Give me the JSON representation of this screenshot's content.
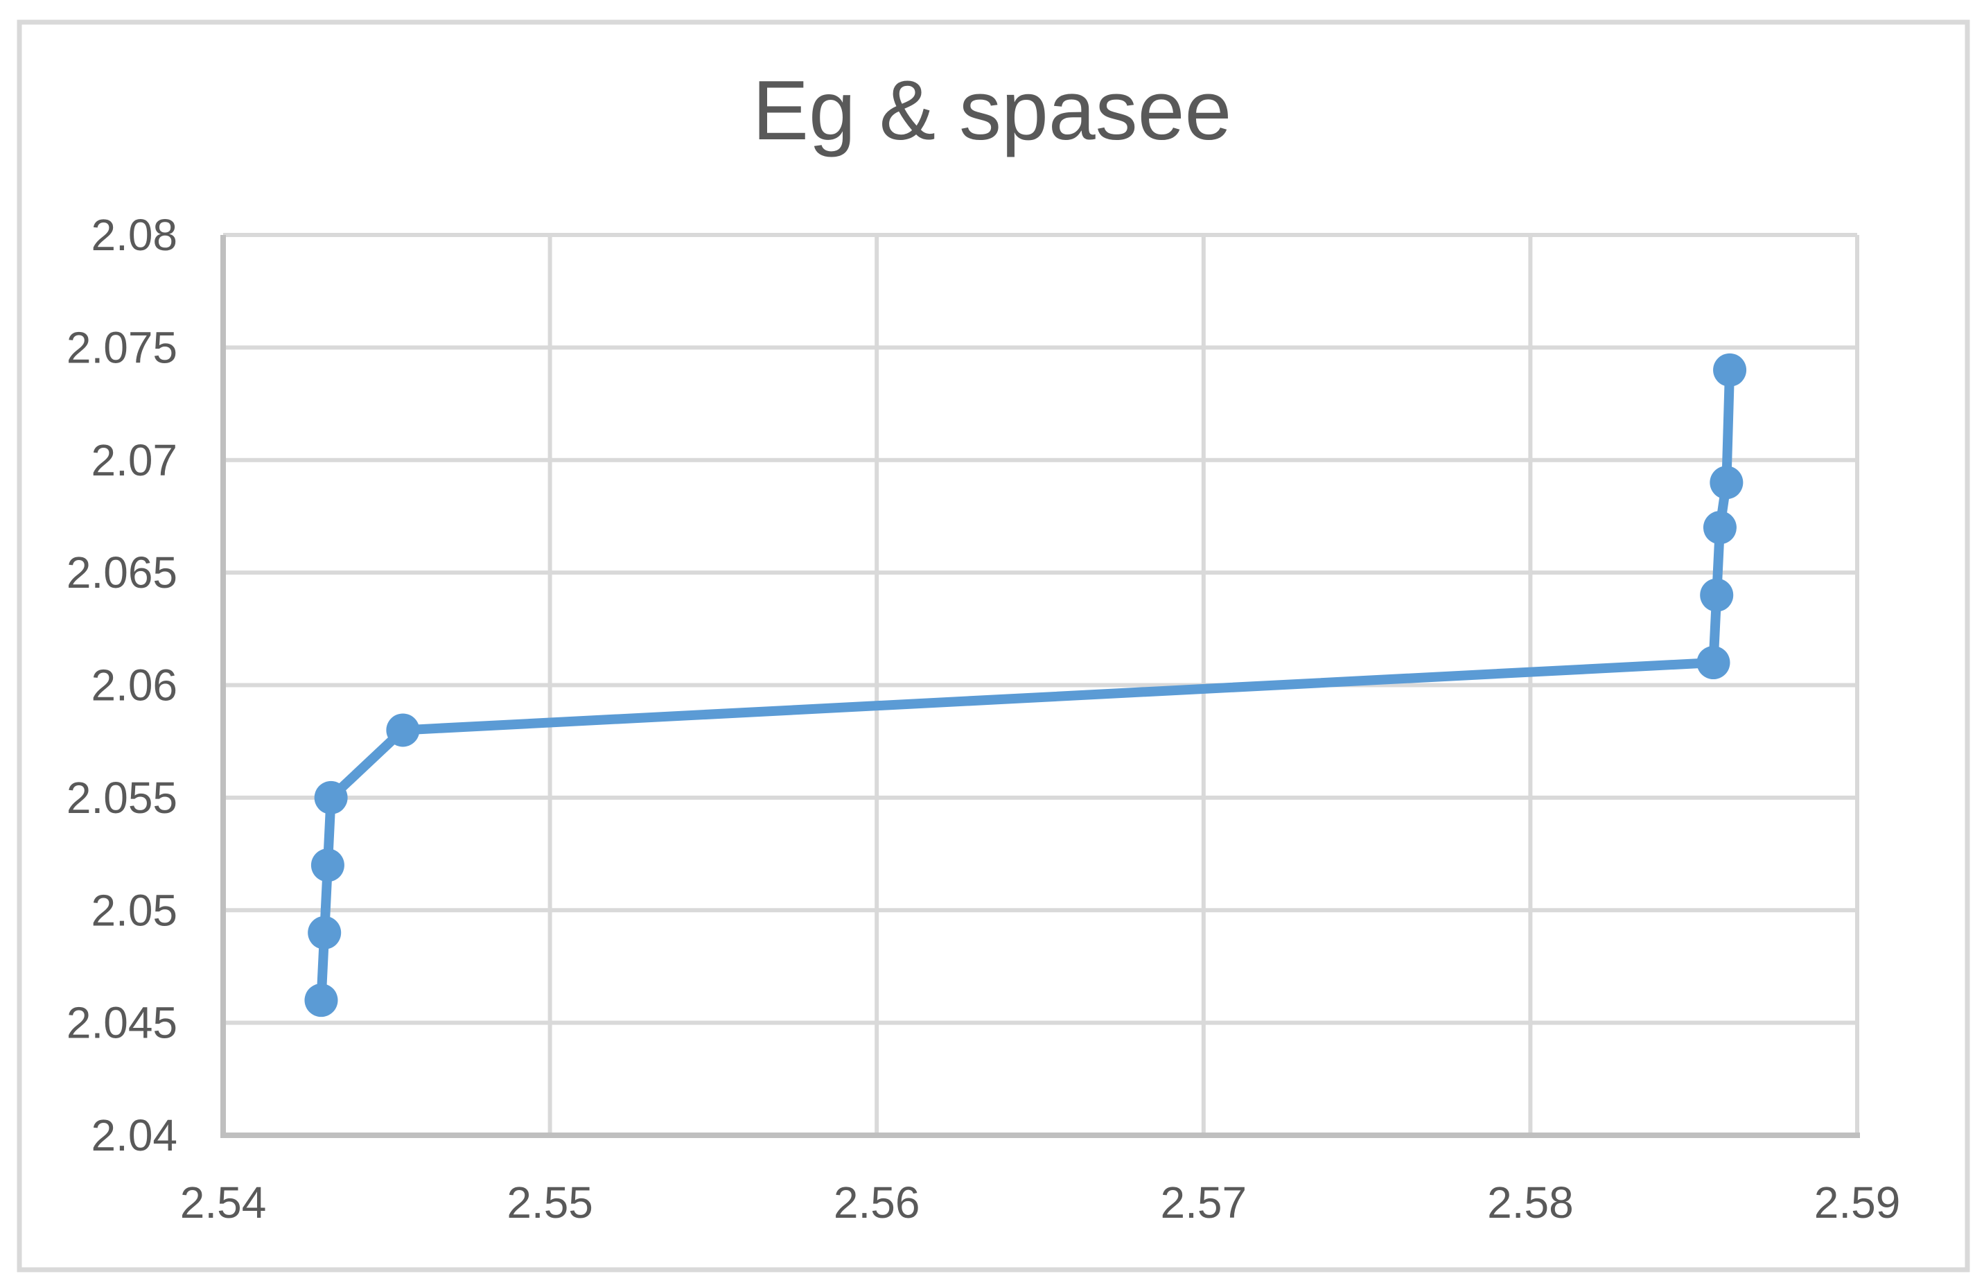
{
  "chart_data": {
    "type": "line",
    "title": "Eg & spasee",
    "xlabel": "",
    "ylabel": "",
    "xlim": [
      2.54,
      2.59
    ],
    "ylim": [
      2.04,
      2.08
    ],
    "x_ticks": [
      "2.54",
      "2.55",
      "2.56",
      "2.57",
      "2.58",
      "2.59"
    ],
    "y_ticks": [
      "2.04",
      "2.045",
      "2.05",
      "2.055",
      "2.06",
      "2.065",
      "2.07",
      "2.075",
      "2.08"
    ],
    "grid": true,
    "legend_position": "none",
    "series": [
      {
        "name": "Eg & spasee",
        "marker": "circle",
        "points": [
          {
            "x": 2.543,
            "y": 2.046
          },
          {
            "x": 2.5431,
            "y": 2.049
          },
          {
            "x": 2.5432,
            "y": 2.052
          },
          {
            "x": 2.5433,
            "y": 2.055
          },
          {
            "x": 2.5455,
            "y": 2.058
          },
          {
            "x": 2.5856,
            "y": 2.061
          },
          {
            "x": 2.5857,
            "y": 2.064
          },
          {
            "x": 2.5858,
            "y": 2.067
          },
          {
            "x": 2.586,
            "y": 2.069
          },
          {
            "x": 2.5861,
            "y": 2.074
          }
        ]
      }
    ],
    "colors": {
      "series": "#5B9BD5",
      "gridline": "#D9D9D9",
      "axis_line": "#BFBFBF",
      "tick_text": "#595959",
      "title_text": "#595959",
      "chart_border": "#D9D9D9",
      "background": "#FFFFFF"
    }
  }
}
